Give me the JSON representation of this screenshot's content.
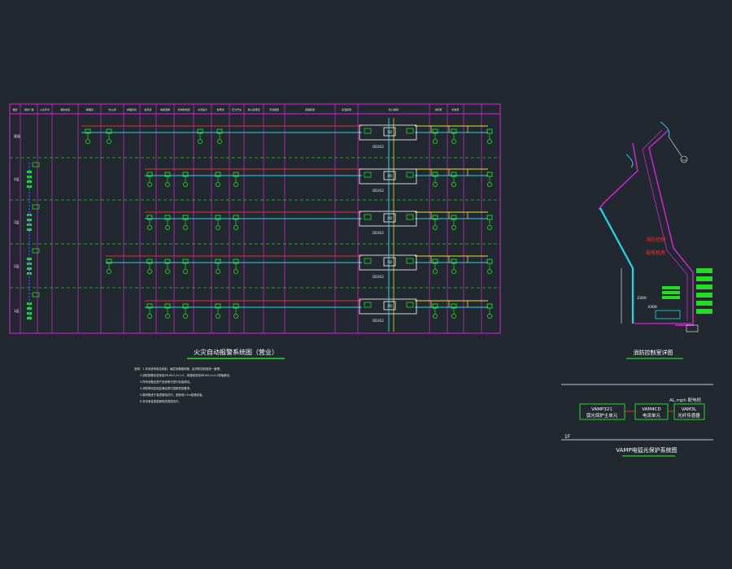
{
  "colors": {
    "background": "#212830",
    "frame": "#e020e0",
    "grid": "#22cc22",
    "bus_cyan": "#22d8e8",
    "bus_red": "#e03030",
    "bus_yellow": "#e8e020",
    "device": "#22dd22",
    "title_white": "#ffffff",
    "title_green": "#22dd22",
    "text_red": "#ff3030"
  },
  "fire_alarm": {
    "title": "火灾自动报警系统图（营业）",
    "floor_labels": [
      "屋面",
      "4层",
      "3层",
      "2层",
      "1层"
    ],
    "controller_labels": [
      "DD4S2",
      "DD4S2",
      "DD4S2",
      "DD4S2",
      "DD4S2"
    ],
    "module_label": "XD",
    "header_labels": [
      "楼层",
      "消防广播",
      "火灾声光",
      "消防电话",
      "排烟阀",
      "防火阀",
      "排烟风机",
      "新风机",
      "电梯迫降",
      "非消防电源",
      "水流指示",
      "信号阀",
      "压力开关",
      "消火栓按钮",
      "手动报警",
      "感烟探测",
      "感温探测",
      "防火卷帘",
      "消防泵",
      "喷淋泵"
    ],
    "notes": [
      "说明：1.本系统采用总线制，每层设置模块箱，由消防控制室统一管理。",
      "2.消防报警总线采用ZR-RVS-2×1.5，电源线采用ZR-BV-2×2.5穿管敷设。",
      "3.所有设备应按产品说明书进行安装调试。",
      "4.消防联动控制应满足现行国家规范要求。",
      "5.模块箱设于各层弱电井内，底距地1.5m挂墙安装。",
      "6.未尽事宜按国家相关规范执行。"
    ]
  },
  "control_room": {
    "title": "消防控制室详图",
    "room_label_1": "消防控制",
    "room_label_2": "弱电机房",
    "dim_1": "2300",
    "dim_2": "4300",
    "tag": "A-4"
  },
  "vamp": {
    "title": "VAMP电弧光保护系统图",
    "floor": "1F",
    "cabinet": "AL.mph 配电柜",
    "unit_1_model": "VAMP321",
    "unit_1_name": "弧光保护主单元",
    "unit_2_model": "VAM4CD",
    "unit_2_name": "电流单元",
    "unit_3_model": "VAM3L",
    "unit_3_name": "光纤传感器"
  }
}
